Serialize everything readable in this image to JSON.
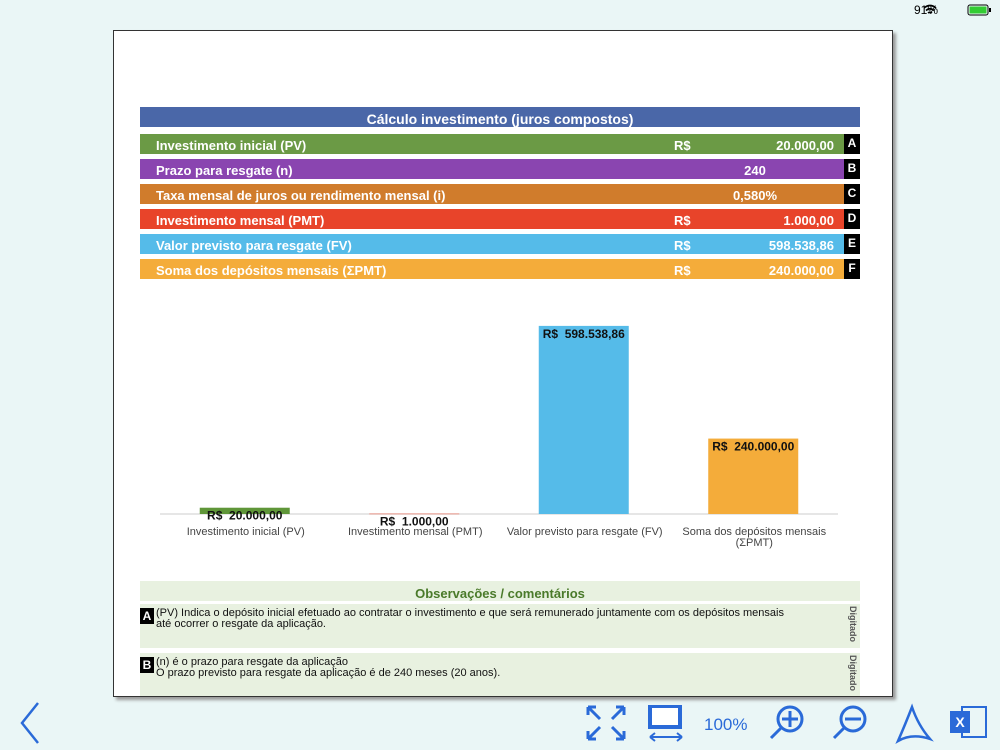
{
  "status": {
    "battery": "91%"
  },
  "table": {
    "title": "Cálculo investimento (juros compostos)",
    "rows": [
      {
        "label": "Investimento inicial (PV)",
        "currency": "R$",
        "value": "20.000,00",
        "letter": "A"
      },
      {
        "label": "Prazo para resgate (n)",
        "value": "240",
        "letter": "B"
      },
      {
        "label": "Taxa mensal de juros ou rendimento mensal (i)",
        "value": "0,580%",
        "letter": "C"
      },
      {
        "label": "Investimento mensal (PMT)",
        "currency": "R$",
        "value": "1.000,00",
        "letter": "D"
      },
      {
        "label": "Valor previsto para resgate (FV)",
        "currency": "R$",
        "value": "598.538,86",
        "letter": "E"
      },
      {
        "label": "Soma dos depósitos mensais (ΣPMT)",
        "currency": "R$",
        "value": "240.000,00",
        "letter": "F"
      }
    ]
  },
  "chart_data": {
    "type": "bar",
    "categories": [
      "Investimento inicial (PV)",
      "Investimento mensal (PMT)",
      "Valor previsto para resgate (FV)",
      "Soma dos depósitos mensais (ΣPMT)"
    ],
    "values": [
      20000,
      1000,
      598538.86,
      240000
    ],
    "value_labels": [
      "R$  20.000,00",
      "R$  1.000,00",
      "R$  598.538,86",
      "R$  240.000,00"
    ],
    "colors": [
      "#5f9638",
      "#e8442a",
      "#55bbe9",
      "#f4ac3a"
    ],
    "ylim": [
      0,
      700000
    ]
  },
  "notes": {
    "title": "Observações / comentários",
    "items": [
      {
        "letter": "A",
        "lines": [
          "(PV) Indica o depósito inicial efetuado ao contratar o investimento e que será remunerado juntamente com os depósitos mensais",
          "até ocorrer o resgate da aplicação."
        ],
        "tag": "Digitado"
      },
      {
        "letter": "B",
        "lines": [
          "(n) é o prazo para resgate da aplicação",
          "O prazo previsto para resgate da aplicação é de 240 meses (20 anos)."
        ],
        "tag": "Digitado"
      }
    ]
  },
  "toolbar": {
    "zoom": "100%"
  }
}
